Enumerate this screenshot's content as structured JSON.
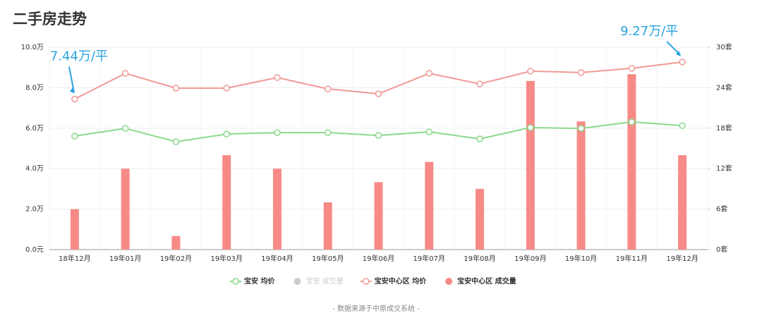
{
  "chart_data": {
    "type": "combo",
    "title": "二手房走势",
    "footnote": "- 数据来源于中原成交系统 -",
    "categories": [
      "18年12月",
      "19年01月",
      "19年02月",
      "19年03月",
      "19年04月",
      "19年05月",
      "19年06月",
      "19年07月",
      "19年08月",
      "19年09月",
      "19年10月",
      "19年11月",
      "19年12月"
    ],
    "ylim": [
      0,
      10
    ],
    "yticks": [
      {
        "value": 0,
        "label": "0.0元"
      },
      {
        "value": 2,
        "label": "2.0万"
      },
      {
        "value": 4,
        "label": "4.0万"
      },
      {
        "value": 6,
        "label": "6.0万"
      },
      {
        "value": 8,
        "label": "8.0万"
      },
      {
        "value": 10,
        "label": "10.0万"
      }
    ],
    "y2lim": [
      0,
      30
    ],
    "y2ticks": [
      {
        "value": 0,
        "label": "0套"
      },
      {
        "value": 6,
        "label": "6套"
      },
      {
        "value": 12,
        "label": "12套"
      },
      {
        "value": 18,
        "label": "18套"
      },
      {
        "value": 24,
        "label": "24套"
      },
      {
        "value": 30,
        "label": "30套"
      }
    ],
    "grid": true,
    "series": [
      {
        "name": "宝安 均价",
        "type": "line",
        "color": "#8ad98a",
        "values": [
          5.61,
          5.99,
          5.33,
          5.71,
          5.78,
          5.78,
          5.64,
          5.82,
          5.47,
          6.03,
          5.99,
          6.31,
          6.13
        ]
      },
      {
        "name": "宝安 成交量",
        "type": "bar",
        "color": "#cccccc",
        "visible": false
      },
      {
        "name": "宝安中心区 均价",
        "type": "line",
        "color": "#f09a96",
        "values": [
          7.44,
          8.71,
          7.98,
          7.98,
          8.5,
          7.94,
          7.7,
          8.71,
          8.19,
          8.82,
          8.75,
          8.96,
          9.27
        ]
      },
      {
        "name": "宝安中心区 成交量",
        "type": "bar",
        "axis": "y2",
        "color": "#f78a87",
        "values": [
          6,
          12,
          2,
          14,
          12,
          7,
          10,
          13,
          9,
          25,
          19,
          26,
          14
        ]
      }
    ],
    "annotations": [
      "7.44万/平",
      "9.27万/平"
    ]
  }
}
